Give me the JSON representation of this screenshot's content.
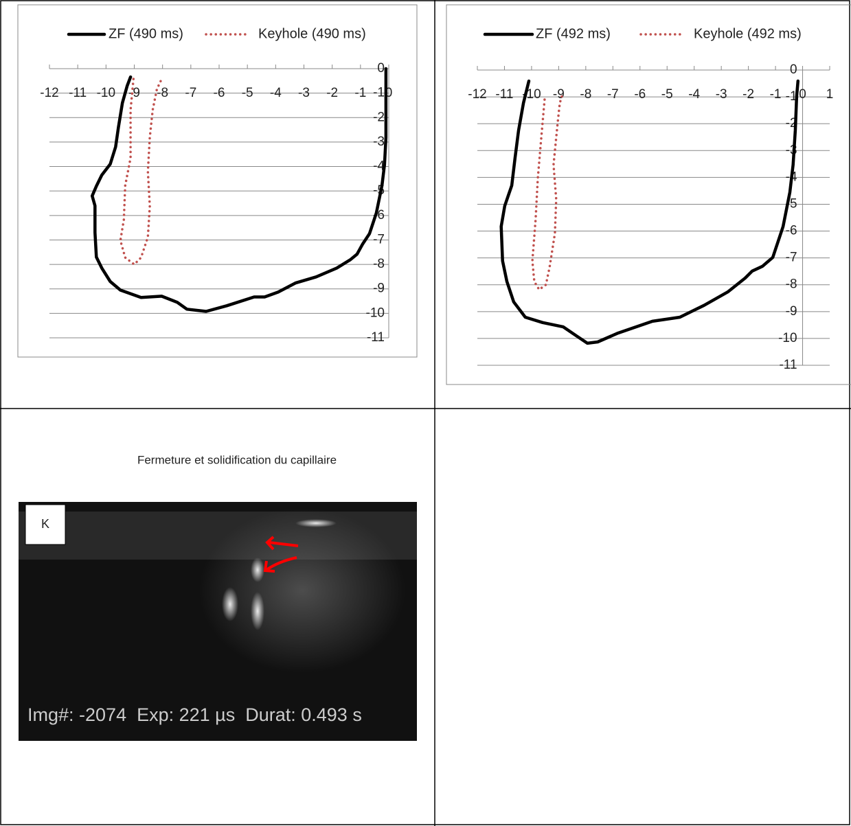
{
  "chart_data": [
    {
      "type": "line",
      "ylim": [
        -11,
        0
      ],
      "xlim": [
        -12,
        0
      ],
      "xticks": [
        -12,
        -11,
        -10,
        -9,
        -8,
        -7,
        -6,
        -5,
        -4,
        -3,
        -2,
        -1,
        0
      ],
      "yticks": [
        0,
        -1,
        -2,
        -3,
        -4,
        -5,
        -6,
        -7,
        -8,
        -9,
        -10,
        -11
      ],
      "grid": true,
      "series": [
        {
          "name": "ZF (490 ms)",
          "color": "#000000",
          "style": "solid",
          "x": [
            -9.13,
            -9.25,
            -9.42,
            -9.56,
            -9.66,
            -9.85,
            -10.15,
            -10.34,
            -10.49,
            -10.39,
            -10.39,
            -10.34,
            -10.15,
            -9.85,
            -9.49,
            -8.76,
            -8.03,
            -7.48,
            -7.14,
            -6.46,
            -5.73,
            -4.76,
            -4.39,
            -3.91,
            -3.3,
            -2.57,
            -1.84,
            -1.36,
            -1.12,
            -0.92,
            -0.68,
            -0.44,
            -0.24,
            -0.15,
            -0.1,
            -0.1,
            -0.1
          ],
          "y": [
            -0.34,
            -0.7,
            -1.4,
            -2.4,
            -3.2,
            -3.9,
            -4.35,
            -4.8,
            -5.2,
            -5.6,
            -6.7,
            -7.7,
            -8.15,
            -8.7,
            -9.05,
            -9.35,
            -9.3,
            -9.55,
            -9.83,
            -9.92,
            -9.69,
            -9.33,
            -9.33,
            -9.13,
            -8.76,
            -8.51,
            -8.15,
            -7.81,
            -7.58,
            -7.16,
            -6.74,
            -5.9,
            -4.78,
            -3.93,
            -2.81,
            -1.69,
            0
          ]
        },
        {
          "name": "Keyhole (490 ms)",
          "color": "#c0504d",
          "style": "dotted",
          "x": [
            -9.03,
            -9.13,
            -9.13,
            -9.32,
            -9.37,
            -9.49,
            -9.32,
            -9.0,
            -8.76,
            -8.52,
            -8.45,
            -8.52,
            -8.45,
            -8.35,
            -8.2,
            -8.03
          ],
          "y": [
            -0.42,
            -1.69,
            -3.65,
            -4.78,
            -6.18,
            -7.02,
            -7.72,
            -8.0,
            -7.72,
            -6.88,
            -5.62,
            -4.21,
            -2.81,
            -1.69,
            -0.84,
            -0.42
          ]
        }
      ]
    },
    {
      "type": "line",
      "ylim": [
        -11,
        0
      ],
      "xlim": [
        -12,
        1
      ],
      "xticks": [
        -12,
        -11,
        -10,
        -9,
        -8,
        -7,
        -6,
        -5,
        -4,
        -3,
        -2,
        -1,
        0,
        1
      ],
      "yticks": [
        0,
        -1,
        -2,
        -3,
        -4,
        -5,
        -6,
        -7,
        -8,
        -9,
        -10,
        -11
      ],
      "grid": true,
      "series": [
        {
          "name": "ZF (492 ms)",
          "color": "#000000",
          "style": "solid",
          "x": [
            -10.1,
            -10.3,
            -10.48,
            -10.61,
            -10.73,
            -10.86,
            -10.99,
            -11.12,
            -11.07,
            -10.91,
            -10.66,
            -10.23,
            -9.59,
            -8.83,
            -8.32,
            -7.94,
            -7.56,
            -6.81,
            -5.54,
            -4.53,
            -3.64,
            -2.75,
            -2.12,
            -1.86,
            -1.48,
            -1.1,
            -0.72,
            -0.47,
            -0.35,
            -0.27,
            -0.22,
            -0.17
          ],
          "y": [
            -0.41,
            -1.23,
            -2.25,
            -3.27,
            -4.3,
            -4.68,
            -5.06,
            -5.83,
            -7.11,
            -7.88,
            -8.64,
            -9.21,
            -9.41,
            -9.57,
            -9.92,
            -10.18,
            -10.13,
            -9.8,
            -9.36,
            -9.21,
            -8.77,
            -8.26,
            -7.75,
            -7.49,
            -7.31,
            -6.98,
            -5.83,
            -4.55,
            -3.53,
            -2.25,
            -0.97,
            -0.41
          ]
        },
        {
          "name": "Keyhole (492 ms)",
          "color": "#c0504d",
          "style": "dotted",
          "x": [
            -9.52,
            -9.64,
            -9.77,
            -9.85,
            -9.97,
            -9.9,
            -9.72,
            -9.47,
            -9.34,
            -9.14,
            -9.09,
            -9.19,
            -9.04,
            -8.96,
            -8.88
          ],
          "y": [
            -1.1,
            -2.51,
            -4.04,
            -5.58,
            -7.11,
            -7.88,
            -8.18,
            -8.0,
            -7.37,
            -6.09,
            -4.81,
            -3.53,
            -2.0,
            -1.23,
            -0.97
          ]
        }
      ]
    }
  ],
  "figure": {
    "caption": "Fermeture et solidification du capillaire",
    "label": "K",
    "overlay": "Img#: -2074  Exp: 221 µs  Durat: 0.493 s"
  }
}
